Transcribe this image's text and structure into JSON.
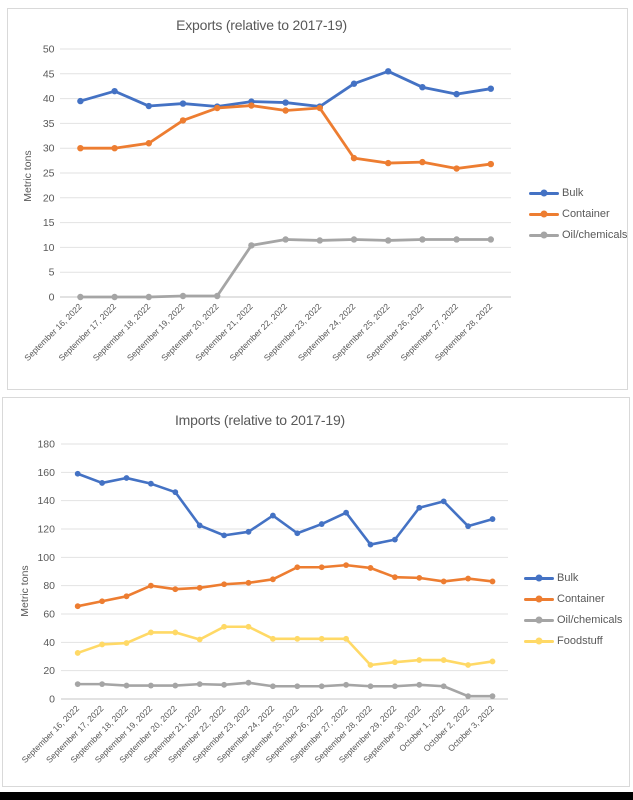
{
  "page": {
    "background": "#ffffff",
    "bottom_bar_color": "#000000",
    "panel_border_color": "#D9D9D9",
    "gridline_color": "#E2E2E2",
    "axis_line_color": "#C6C6C6",
    "text_color": "#595959"
  },
  "chart_data": [
    {
      "type": "line",
      "title": "Exports (relative to 2017-19)",
      "ylabel": "Metric tons",
      "xlabel": "",
      "ylim": [
        0,
        50
      ],
      "ytick_step": 5,
      "grid": true,
      "legend_position": "right",
      "categories": [
        "September 16, 2022",
        "September 17, 2022",
        "September 18, 2022",
        "September 19, 2022",
        "September 20, 2022",
        "September 21, 2022",
        "September 22, 2022",
        "September 23, 2022",
        "September 24, 2022",
        "September 25, 2022",
        "September 26, 2022",
        "September 27, 2022",
        "September 28, 2022"
      ],
      "series": [
        {
          "name": "Bulk",
          "color": "#4472C4",
          "values": [
            39.5,
            41.5,
            38.5,
            39.0,
            38.4,
            39.4,
            39.2,
            38.4,
            43.0,
            45.5,
            42.3,
            40.9,
            42.0
          ]
        },
        {
          "name": "Container",
          "color": "#ED7D31",
          "values": [
            30.0,
            30.0,
            31.0,
            35.6,
            38.1,
            38.6,
            37.6,
            38.1,
            28.0,
            27.0,
            27.2,
            25.9,
            26.8
          ]
        },
        {
          "name": "Oil/chemicals",
          "color": "#A5A5A5",
          "values": [
            0,
            0,
            0,
            0.2,
            0.2,
            10.4,
            11.6,
            11.4,
            11.6,
            11.4,
            11.6,
            11.6,
            11.6
          ]
        }
      ]
    },
    {
      "type": "line",
      "title": "Imports (relative to 2017-19)",
      "ylabel": "Metric tons",
      "xlabel": "",
      "ylim": [
        0,
        180
      ],
      "ytick_step": 20,
      "grid": true,
      "legend_position": "right",
      "categories": [
        "September 16, 2022",
        "September 17, 2022",
        "September 18, 2022",
        "September 19, 2022",
        "September 20, 2022",
        "September 21, 2022",
        "September 22, 2022",
        "September 23, 2022",
        "September 24, 2022",
        "September 25, 2022",
        "September 26, 2022",
        "September 27, 2022",
        "September 28, 2022",
        "September 29, 2022",
        "September 30, 2022",
        "October 1, 2022",
        "October 2, 2022",
        "October 3, 2022"
      ],
      "series": [
        {
          "name": "Bulk",
          "color": "#4472C4",
          "values": [
            159,
            152.5,
            156,
            152,
            146,
            122.5,
            115.5,
            118,
            129.5,
            117,
            123.5,
            131.5,
            109,
            112.5,
            135,
            139.5,
            122,
            127
          ]
        },
        {
          "name": "Container",
          "color": "#ED7D31",
          "values": [
            65.5,
            69,
            72.5,
            80,
            77.5,
            78.5,
            81,
            82,
            84.5,
            93,
            93,
            94.5,
            92.5,
            86,
            85.5,
            83,
            85,
            83
          ]
        },
        {
          "name": "Oil/chemicals",
          "color": "#A5A5A5",
          "values": [
            10.5,
            10.5,
            9.5,
            9.5,
            9.5,
            10.5,
            10,
            11.5,
            9,
            9,
            9,
            10,
            9,
            9,
            10,
            9,
            2,
            2
          ]
        },
        {
          "name": "Foodstuff",
          "color": "#FFD966",
          "values": [
            32.5,
            38.5,
            39.5,
            47,
            47,
            42,
            51,
            51,
            42.5,
            42.5,
            42.5,
            42.5,
            24,
            26,
            27.5,
            27.5,
            24,
            26.5
          ]
        }
      ]
    }
  ]
}
